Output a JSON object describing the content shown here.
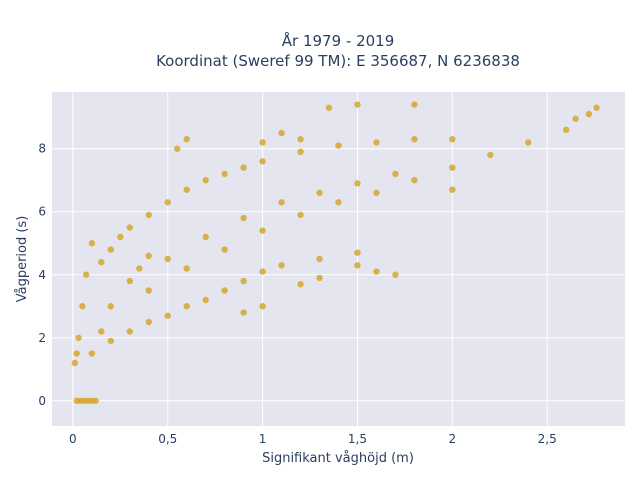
{
  "chart_data": {
    "type": "scatter",
    "title_lines": [
      "År 1979 - 2019",
      "Koordinat (Sweref 99 TM): E 356687, N 6236838"
    ],
    "xlabel": "Signifikant våghöjd (m)",
    "ylabel": "Vågperiod (s)",
    "xlim": [
      -0.11,
      2.91
    ],
    "ylim": [
      -0.8,
      9.8
    ],
    "x_ticks": [
      0,
      0.5,
      1,
      1.5,
      2,
      2.5
    ],
    "x_tick_labels": [
      "0",
      "0,5",
      "1",
      "1,5",
      "2",
      "2,5"
    ],
    "y_ticks": [
      0,
      2,
      4,
      6,
      8
    ],
    "y_tick_labels": [
      "0",
      "2",
      "4",
      "6",
      "8"
    ],
    "grid": true,
    "marker_color": "#D4A220",
    "background_color": "#E5E5F0",
    "series": [
      {
        "points": [
          [
            0.02,
            0.0
          ],
          [
            0.04,
            0.0
          ],
          [
            0.06,
            0.0
          ],
          [
            0.08,
            0.0
          ],
          [
            0.1,
            0.0
          ],
          [
            0.12,
            0.0
          ],
          [
            0.01,
            1.2
          ],
          [
            0.02,
            1.5
          ],
          [
            0.03,
            2.0
          ],
          [
            0.05,
            3.0
          ],
          [
            0.07,
            4.0
          ],
          [
            0.1,
            5.0
          ],
          [
            0.15,
            4.4
          ],
          [
            0.2,
            4.8
          ],
          [
            0.25,
            5.2
          ],
          [
            0.3,
            5.5
          ],
          [
            0.4,
            5.9
          ],
          [
            0.5,
            6.3
          ],
          [
            0.6,
            6.7
          ],
          [
            0.7,
            7.0
          ],
          [
            0.8,
            7.2
          ],
          [
            0.9,
            7.4
          ],
          [
            1.0,
            7.6
          ],
          [
            1.2,
            7.9
          ],
          [
            1.4,
            8.1
          ],
          [
            1.6,
            8.2
          ],
          [
            1.8,
            8.3
          ],
          [
            2.0,
            8.3
          ],
          [
            0.1,
            1.5
          ],
          [
            0.2,
            1.9
          ],
          [
            0.3,
            2.2
          ],
          [
            0.4,
            2.5
          ],
          [
            0.5,
            2.7
          ],
          [
            0.6,
            3.0
          ],
          [
            0.7,
            3.2
          ],
          [
            0.8,
            3.5
          ],
          [
            0.9,
            3.8
          ],
          [
            1.0,
            4.1
          ],
          [
            1.1,
            4.3
          ],
          [
            1.3,
            4.5
          ],
          [
            1.5,
            4.7
          ],
          [
            0.3,
            3.8
          ],
          [
            0.5,
            4.5
          ],
          [
            0.7,
            5.2
          ],
          [
            0.9,
            5.8
          ],
          [
            1.1,
            6.3
          ],
          [
            1.3,
            6.6
          ],
          [
            1.5,
            6.9
          ],
          [
            1.7,
            7.2
          ],
          [
            0.2,
            3.0
          ],
          [
            0.4,
            3.5
          ],
          [
            0.6,
            4.2
          ],
          [
            0.8,
            4.8
          ],
          [
            1.0,
            5.4
          ],
          [
            1.2,
            5.9
          ],
          [
            1.4,
            6.3
          ],
          [
            1.6,
            6.6
          ],
          [
            1.8,
            7.0
          ],
          [
            2.0,
            7.4
          ],
          [
            2.2,
            7.8
          ],
          [
            2.4,
            8.2
          ],
          [
            2.6,
            8.6
          ],
          [
            2.65,
            8.95
          ],
          [
            2.72,
            9.1
          ],
          [
            2.76,
            9.3
          ],
          [
            1.2,
            8.3
          ],
          [
            1.35,
            9.3
          ],
          [
            1.5,
            9.4
          ],
          [
            1.8,
            9.4
          ],
          [
            1.1,
            8.5
          ],
          [
            1.0,
            8.2
          ],
          [
            2.0,
            6.7
          ],
          [
            1.5,
            4.3
          ],
          [
            1.6,
            4.1
          ],
          [
            1.7,
            4.0
          ],
          [
            0.6,
            8.3
          ],
          [
            0.55,
            8.0
          ],
          [
            0.9,
            2.8
          ],
          [
            1.0,
            3.0
          ],
          [
            1.2,
            3.7
          ],
          [
            1.3,
            3.9
          ],
          [
            0.4,
            4.6
          ],
          [
            0.35,
            4.2
          ],
          [
            0.15,
            2.2
          ]
        ]
      }
    ]
  }
}
